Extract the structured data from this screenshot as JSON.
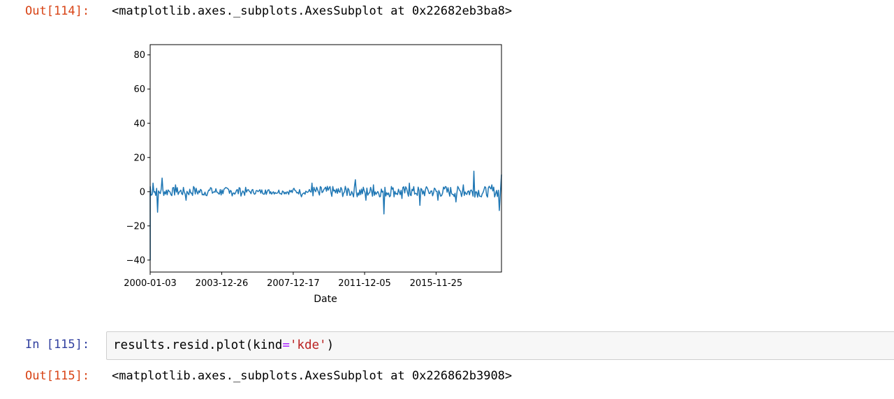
{
  "cell114": {
    "out_prompt": "Out[114]:",
    "out_text": "<matplotlib.axes._subplots.AxesSubplot at 0x22682eb3ba8>"
  },
  "cell115": {
    "in_prompt": "In [115]:",
    "code": {
      "before_op": "results.resid.plot(kind",
      "op": "=",
      "str": "'kde'",
      "after": ")"
    },
    "out_prompt": "Out[115]:",
    "out_text": "<matplotlib.axes._subplots.AxesSubplot at 0x226862b3908>"
  },
  "chart_data": {
    "type": "line",
    "xlabel": "Date",
    "ylabel": "",
    "ylim": [
      -47,
      86
    ],
    "yticks": [
      -40,
      -20,
      0,
      20,
      40,
      60,
      80
    ],
    "xtick_labels": [
      "2000-01-03",
      "2003-12-26",
      "2007-12-17",
      "2011-12-05",
      "2015-11-25"
    ],
    "x_range": [
      "2000-01-03",
      "2019-07-15"
    ],
    "color": "#1f77b4",
    "series": [
      {
        "x": [
          "2000-01-03",
          "2000-01-04",
          "2000-01-05",
          "2000-02-01",
          "2000-03-01",
          "2000-06-01",
          "2000-09-01",
          "2001-01-01",
          "2001-06-01",
          "2002-01-01",
          "2002-06-01",
          "2003-01-01",
          "2003-06-01",
          "2004-01-01",
          "2004-06-01",
          "2005-01-01",
          "2005-06-01",
          "2006-01-01",
          "2006-06-01",
          "2007-01-01",
          "2007-06-01",
          "2008-01-01",
          "2008-06-01",
          "2009-01-01",
          "2009-06-01",
          "2010-01-01",
          "2010-06-01",
          "2011-01-01",
          "2011-06-01",
          "2012-01-01",
          "2012-06-01",
          "2013-01-01",
          "2013-06-01",
          "2014-01-01",
          "2014-06-01",
          "2015-01-01",
          "2015-06-01",
          "2016-01-01",
          "2016-06-01",
          "2017-01-01",
          "2017-06-01",
          "2018-01-01",
          "2018-06-01",
          "2019-01-01",
          "2019-06-01",
          "2019-07-15"
        ],
        "values": [
          0,
          -40,
          3,
          -2,
          5,
          -12,
          8,
          1,
          4,
          -5,
          3,
          -2,
          2,
          1,
          -1,
          2,
          1,
          0,
          1,
          -1,
          0,
          2,
          -3,
          5,
          -2,
          3,
          -1,
          2,
          7,
          -5,
          4,
          -13,
          3,
          -4,
          5,
          -8,
          2,
          -5,
          3,
          -6,
          4,
          12,
          -3,
          4,
          -11,
          10
        ]
      }
    ]
  }
}
